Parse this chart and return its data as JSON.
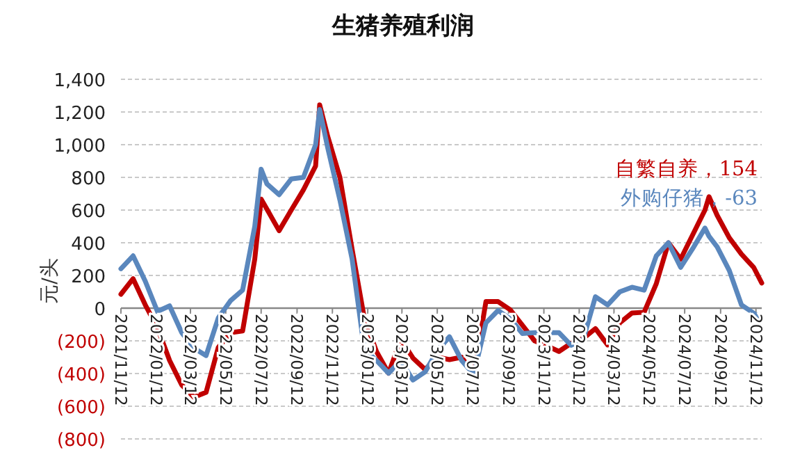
{
  "chart_data": {
    "type": "line",
    "title": "生猪养殖利润",
    "ylabel": "元/头",
    "grid": "y",
    "x": [
      "2021-11-12",
      "2021-12-03",
      "2021-12-24",
      "2022-01-14",
      "2022-02-04",
      "2022-02-25",
      "2022-03-18",
      "2022-04-08",
      "2022-04-29",
      "2022-05-20",
      "2022-06-10",
      "2022-07-01",
      "2022-07-12",
      "2022-07-22",
      "2022-08-12",
      "2022-09-02",
      "2022-09-23",
      "2022-10-14",
      "2022-10-21",
      "2022-11-04",
      "2022-11-25",
      "2022-12-16",
      "2023-01-06",
      "2023-01-27",
      "2023-02-17",
      "2023-03-10",
      "2023-03-31",
      "2023-04-21",
      "2023-05-12",
      "2023-06-02",
      "2023-06-23",
      "2023-07-14",
      "2023-08-04",
      "2023-08-25",
      "2023-09-15",
      "2023-10-06",
      "2023-10-27",
      "2023-11-17",
      "2023-12-08",
      "2023-12-29",
      "2024-01-19",
      "2024-02-09",
      "2024-03-01",
      "2024-03-22",
      "2024-04-12",
      "2024-05-03",
      "2024-05-24",
      "2024-06-14",
      "2024-07-05",
      "2024-07-26",
      "2024-08-16",
      "2024-08-23",
      "2024-09-06",
      "2024-09-27",
      "2024-10-18",
      "2024-11-08",
      "2024-11-22"
    ],
    "series": [
      {
        "name": "自繁自养，154",
        "color": "#c00000",
        "values": [
          85,
          180,
          20,
          -120,
          -320,
          -470,
          -545,
          -515,
          -240,
          -150,
          -140,
          300,
          667,
          605,
          474,
          600,
          724,
          870,
          1244,
          1050,
          800,
          360,
          -60,
          -265,
          -398,
          -190,
          -305,
          -375,
          -300,
          -315,
          -300,
          -405,
          40,
          40,
          -10,
          -105,
          -200,
          -230,
          -265,
          -215,
          -185,
          -125,
          -225,
          -90,
          -30,
          -25,
          150,
          400,
          300,
          450,
          600,
          682,
          568,
          430,
          330,
          250,
          154
        ]
      },
      {
        "name": "外购仔猪，-63",
        "color": "#5a87bd",
        "values": [
          241,
          320,
          165,
          -20,
          14,
          -150,
          -245,
          -290,
          -60,
          45,
          110,
          500,
          850,
          760,
          694,
          790,
          800,
          1000,
          1215,
          980,
          660,
          300,
          -250,
          -320,
          -398,
          -320,
          -440,
          -390,
          -260,
          -175,
          -320,
          -405,
          -90,
          -14,
          -65,
          -155,
          -150,
          -150,
          -150,
          -227,
          -190,
          70,
          20,
          100,
          128,
          110,
          320,
          400,
          250,
          365,
          490,
          440,
          375,
          230,
          20,
          -30,
          -63
        ]
      }
    ],
    "xlim": [
      "2021-11-12",
      "2024-11-22"
    ],
    "xticks": [
      {
        "value": "2021-11-12",
        "label": "2021/11/12"
      },
      {
        "value": "2022-01-12",
        "label": "2022/01/12"
      },
      {
        "value": "2022-03-12",
        "label": "2022/03/12"
      },
      {
        "value": "2022-05-12",
        "label": "2022/05/12"
      },
      {
        "value": "2022-07-12",
        "label": "2022/07/12"
      },
      {
        "value": "2022-09-12",
        "label": "2022/09/12"
      },
      {
        "value": "2022-11-12",
        "label": "2022/11/12"
      },
      {
        "value": "2023-01-12",
        "label": "2023/01/12"
      },
      {
        "value": "2023-03-12",
        "label": "2023/03/12"
      },
      {
        "value": "2023-05-12",
        "label": "2023/05/12"
      },
      {
        "value": "2023-07-12",
        "label": "2023/07/12"
      },
      {
        "value": "2023-09-12",
        "label": "2023/09/12"
      },
      {
        "value": "2023-11-12",
        "label": "2023/11/12"
      },
      {
        "value": "2024-01-12",
        "label": "2024/01/12"
      },
      {
        "value": "2024-03-12",
        "label": "2024/03/12"
      },
      {
        "value": "2024-05-12",
        "label": "2024/05/12"
      },
      {
        "value": "2024-07-12",
        "label": "2024/07/12"
      },
      {
        "value": "2024-09-12",
        "label": "2024/09/12"
      },
      {
        "value": "2024-11-12",
        "label": "2024/11/12"
      }
    ],
    "ylim": [
      -800,
      1400
    ],
    "yticks": [
      {
        "value": 1400,
        "label": "1,400"
      },
      {
        "value": 1200,
        "label": "1,200"
      },
      {
        "value": 1000,
        "label": "1,000"
      },
      800,
      600,
      400,
      200,
      0,
      {
        "value": -200,
        "label": "(200)"
      },
      {
        "value": -400,
        "label": "(400)"
      },
      {
        "value": -600,
        "label": "(600)"
      },
      {
        "value": -800,
        "label": "(800)"
      }
    ]
  }
}
